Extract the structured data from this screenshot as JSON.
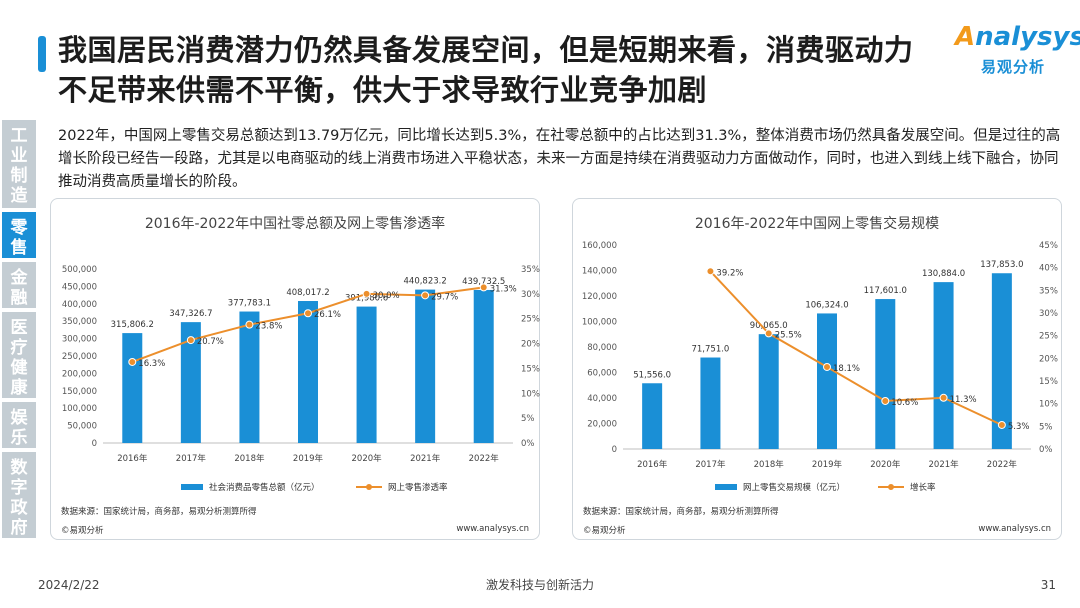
{
  "header": {
    "title": "我国居民消费潜力仍然具备发展空间，但是短期来看，消费驱动力不足带来供需不平衡，供大于求导致行业竞争加剧",
    "logo_main": "nalysys",
    "logo_a": "A",
    "logo_sub": "易观分析"
  },
  "sidebar": {
    "items": [
      {
        "label": "工业制造",
        "active": false
      },
      {
        "label": "零售",
        "active": true
      },
      {
        "label": "金融",
        "active": false
      },
      {
        "label": "医疗健康",
        "active": false
      },
      {
        "label": "娱乐",
        "active": false
      },
      {
        "label": "数字政府",
        "active": false
      }
    ]
  },
  "body_text": "2022年，中国网上零售交易总额达到13.79万亿元，同比增长达到5.3%，在社零总额中的占比达到31.3%，整体消费市场仍然具备发展空间。但是过往的高增长阶段已经告一段路，尤其是以电商驱动的线上消费市场进入平稳状态，未来一方面是持续在消费驱动力方面做动作，同时，也进入到线上线下融合，协同推动消费高质量增长的阶段。",
  "colors": {
    "bar": "#1a8fd6",
    "line": "#ec8f2c",
    "accent": "#1a8fd6",
    "sidebar_inactive": "#c4cdd3"
  },
  "chart_data": [
    {
      "type": "bar",
      "title": "2016年-2022年中国社零总额及网上零售渗透率",
      "categories": [
        "2016年",
        "2017年",
        "2018年",
        "2019年",
        "2020年",
        "2021年",
        "2022年"
      ],
      "series": [
        {
          "name": "社会消费品零售总额（亿元）",
          "type": "bar",
          "axis": "left",
          "values": [
            315806.2,
            347326.7,
            377783.1,
            408017.2,
            391980.6,
            440823.2,
            439732.5
          ],
          "labels": [
            "315,806.2",
            "347,326.7",
            "377,783.1",
            "408,017.2",
            "391,980.6",
            "440,823.2",
            "439,732.5"
          ]
        },
        {
          "name": "网上零售渗透率",
          "type": "line",
          "axis": "right",
          "values": [
            16.3,
            20.7,
            23.8,
            26.1,
            30.0,
            29.7,
            31.3
          ],
          "labels": [
            "16.3%",
            "20.7%",
            "23.8%",
            "26.1%",
            "30.0%",
            "29.7%",
            "31.3%"
          ]
        }
      ],
      "ylim": [
        0,
        500000
      ],
      "y2lim": [
        0,
        35
      ],
      "yticks": [
        "0",
        "50,000",
        "100,000",
        "150,000",
        "200,000",
        "250,000",
        "300,000",
        "350,000",
        "400,000",
        "450,000",
        "500,000"
      ],
      "y2ticks": [
        "0%",
        "5%",
        "10%",
        "15%",
        "20%",
        "25%",
        "30%",
        "35%"
      ],
      "legend_position": "bottom",
      "source": "数据来源：国家统计局，商务部，易观分析测算所得",
      "copyright": "©易观分析",
      "website": "www.analysys.cn"
    },
    {
      "type": "bar",
      "title": "2016年-2022年中国网上零售交易规模",
      "categories": [
        "2016年",
        "2017年",
        "2018年",
        "2019年",
        "2020年",
        "2021年",
        "2022年"
      ],
      "series": [
        {
          "name": "网上零售交易规模（亿元）",
          "type": "bar",
          "axis": "left",
          "values": [
            51556.0,
            71751.0,
            90065.0,
            106324.0,
            117601.0,
            130884.0,
            137853.0
          ],
          "labels": [
            "51,556.0",
            "71,751.0",
            "90,065.0",
            "106,324.0",
            "117,601.0",
            "130,884.0",
            "137,853.0"
          ]
        },
        {
          "name": "增长率",
          "type": "line",
          "axis": "right",
          "values": [
            null,
            39.2,
            25.5,
            18.1,
            10.6,
            11.3,
            5.3
          ],
          "labels": [
            "",
            "39.2%",
            "25.5%",
            "18.1%",
            "10.6%",
            "11.3%",
            "5.3%"
          ]
        }
      ],
      "ylim": [
        0,
        160000
      ],
      "y2lim": [
        0,
        45
      ],
      "yticks": [
        "0",
        "20,000",
        "40,000",
        "60,000",
        "80,000",
        "100,000",
        "120,000",
        "140,000",
        "160,000"
      ],
      "y2ticks": [
        "0%",
        "5%",
        "10%",
        "15%",
        "20%",
        "25%",
        "30%",
        "35%",
        "40%",
        "45%"
      ],
      "legend_position": "bottom",
      "source": "数据来源：国家统计局，商务部，易观分析测算所得",
      "copyright": "©易观分析",
      "website": "www.analysys.cn"
    }
  ],
  "footer": {
    "date": "2024/2/22",
    "center": "激发科技与创新活力",
    "page": "31"
  }
}
